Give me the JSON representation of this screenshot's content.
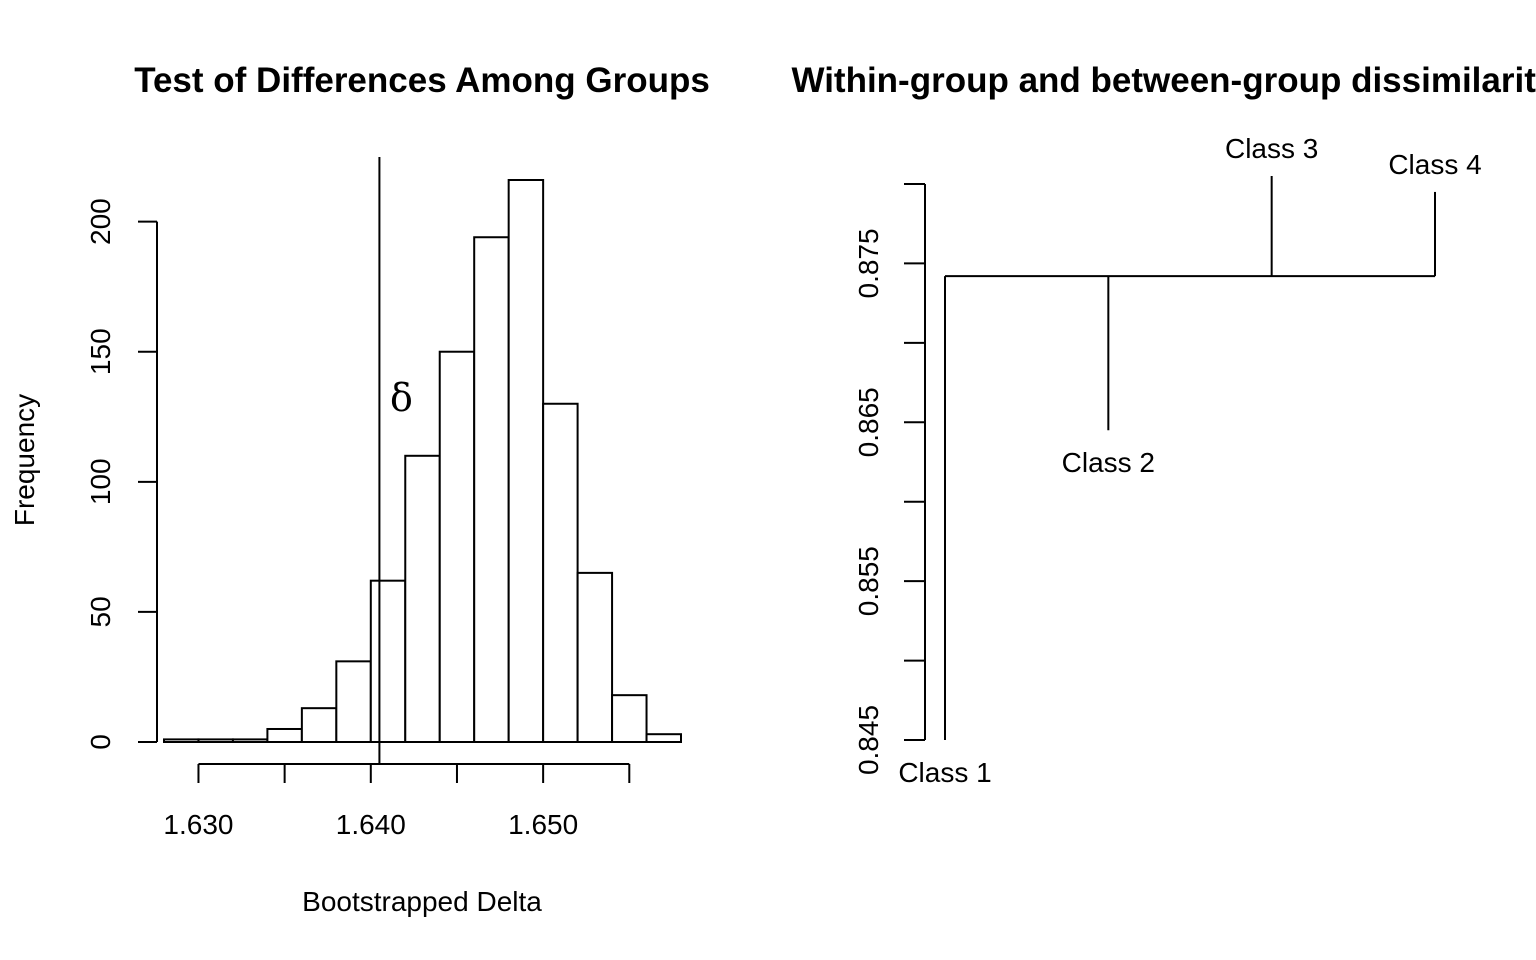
{
  "chart_data": [
    {
      "type": "bar",
      "title": "Test of Differences Among Groups",
      "xlabel": "Bootstrapped Delta",
      "ylabel": "Frequency",
      "bin_edges": [
        1.628,
        1.63,
        1.632,
        1.634,
        1.636,
        1.638,
        1.64,
        1.642,
        1.644,
        1.646,
        1.648,
        1.65,
        1.652,
        1.654,
        1.656,
        1.658
      ],
      "values": [
        1,
        1,
        1,
        5,
        13,
        31,
        62,
        110,
        150,
        194,
        216,
        130,
        65,
        18,
        3
      ],
      "xticks": [
        1.63,
        1.635,
        1.64,
        1.645,
        1.65,
        1.655
      ],
      "xtick_labels": [
        "1.630",
        "",
        "1.640",
        "",
        "1.650",
        ""
      ],
      "yticks": [
        0,
        50,
        100,
        150,
        200
      ],
      "ytick_labels": [
        "0",
        "50",
        "100",
        "150",
        "200"
      ],
      "xlim": [
        1.628,
        1.658
      ],
      "ylim": [
        0,
        216
      ],
      "reference_line": {
        "x": 1.6405,
        "label": "δ",
        "label_y": 132
      }
    },
    {
      "type": "dendrogram",
      "title": "Within-group and between-group dissimilarities",
      "yticks": [
        0.845,
        0.85,
        0.855,
        0.86,
        0.865,
        0.87,
        0.875,
        0.88
      ],
      "ytick_labels": [
        "0.845",
        "",
        "0.855",
        "",
        "0.865",
        "",
        "0.875",
        ""
      ],
      "ylim": [
        0.845,
        0.88
      ],
      "leaves": [
        {
          "label": "Class 1",
          "x": 1,
          "height": 0.845
        },
        {
          "label": "Class 2",
          "x": 2,
          "height": 0.8645
        },
        {
          "label": "Class 3",
          "x": 3,
          "height": 0.8805
        },
        {
          "label": "Class 4",
          "x": 4,
          "height": 0.8795
        }
      ],
      "merge_height": 0.8742,
      "xlim": [
        0.88,
        4
      ]
    }
  ]
}
